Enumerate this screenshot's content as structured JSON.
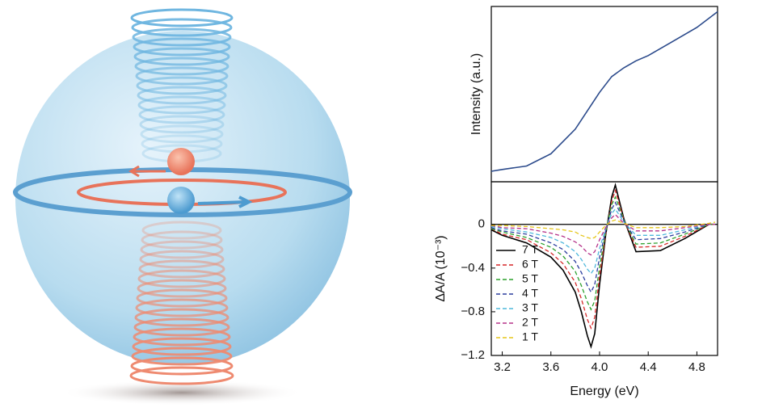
{
  "chart_data": [
    {
      "type": "line",
      "ylabel": "Intensity (a.u.)",
      "color": "#2b4a8b",
      "x": [
        3.11,
        3.2,
        3.4,
        3.6,
        3.8,
        4.0,
        4.1,
        4.2,
        4.3,
        4.4,
        4.6,
        4.8,
        4.97
      ],
      "values": [
        0.06,
        0.07,
        0.09,
        0.16,
        0.3,
        0.51,
        0.6,
        0.65,
        0.69,
        0.72,
        0.8,
        0.88,
        0.97
      ],
      "xlim": [
        3.11,
        4.97
      ],
      "ylim": [
        0,
        1
      ]
    },
    {
      "type": "line",
      "xlabel": "Energy (eV)",
      "ylabel": "ΔA/A (10⁻³)",
      "legend": "lower left",
      "x": [
        3.11,
        3.2,
        3.4,
        3.6,
        3.7,
        3.8,
        3.85,
        3.9,
        3.93,
        3.96,
        4.0,
        4.05,
        4.1,
        4.13,
        4.2,
        4.3,
        4.5,
        4.7,
        4.9,
        4.95
      ],
      "series": [
        {
          "name": "7 T",
          "color": "#000000",
          "dashed": false,
          "values": [
            -0.05,
            -0.1,
            -0.17,
            -0.3,
            -0.42,
            -0.62,
            -0.8,
            -1.02,
            -1.12,
            -1.0,
            -0.55,
            -0.1,
            0.25,
            0.36,
            0.05,
            -0.25,
            -0.24,
            -0.13,
            0.0,
            0.0
          ]
        },
        {
          "name": "6 T",
          "color": "#d62728",
          "dashed": true,
          "values": [
            -0.04,
            -0.09,
            -0.14,
            -0.26,
            -0.36,
            -0.53,
            -0.68,
            -0.87,
            -0.95,
            -0.85,
            -0.47,
            -0.09,
            0.21,
            0.31,
            0.04,
            -0.21,
            -0.2,
            -0.11,
            0.0,
            0.0
          ]
        },
        {
          "name": "5 T",
          "color": "#2ca02c",
          "dashed": true,
          "values": [
            -0.04,
            -0.07,
            -0.12,
            -0.21,
            -0.29,
            -0.43,
            -0.56,
            -0.71,
            -0.78,
            -0.7,
            -0.39,
            -0.07,
            0.18,
            0.25,
            0.04,
            -0.18,
            -0.17,
            -0.09,
            0.0,
            0.0
          ]
        },
        {
          "name": "4 T",
          "color": "#2c3e9e",
          "dashed": true,
          "values": [
            -0.03,
            -0.06,
            -0.09,
            -0.17,
            -0.23,
            -0.34,
            -0.44,
            -0.56,
            -0.62,
            -0.55,
            -0.3,
            -0.06,
            0.14,
            0.2,
            0.03,
            -0.14,
            -0.13,
            -0.07,
            0.0,
            0.0
          ]
        },
        {
          "name": "3 T",
          "color": "#4fb8dc",
          "dashed": true,
          "values": [
            -0.02,
            -0.04,
            -0.07,
            -0.12,
            -0.17,
            -0.25,
            -0.32,
            -0.41,
            -0.45,
            -0.4,
            -0.22,
            -0.04,
            0.1,
            0.14,
            0.02,
            -0.1,
            -0.1,
            -0.05,
            0.0,
            0.0
          ]
        },
        {
          "name": "2 T",
          "color": "#b5338a",
          "dashed": true,
          "values": [
            -0.01,
            -0.03,
            -0.04,
            -0.08,
            -0.11,
            -0.16,
            -0.2,
            -0.26,
            -0.28,
            -0.25,
            -0.14,
            -0.03,
            0.06,
            0.09,
            0.01,
            -0.06,
            -0.06,
            -0.03,
            0.0,
            0.0
          ]
        },
        {
          "name": "1 T",
          "color": "#e6c619",
          "dashed": true,
          "values": [
            -0.01,
            -0.01,
            -0.02,
            -0.04,
            -0.05,
            -0.07,
            -0.1,
            -0.12,
            -0.13,
            -0.12,
            -0.07,
            -0.01,
            0.03,
            0.04,
            0.01,
            -0.03,
            -0.03,
            -0.02,
            0.01,
            0.02
          ]
        }
      ],
      "xlim": [
        3.11,
        4.97
      ],
      "ylim": [
        -1.2,
        0.39
      ],
      "xticks": [
        3.2,
        3.6,
        {
          "value": 4,
          "label": "4.0"
        },
        4.4,
        4.8
      ],
      "yticks": [
        {
          "value": -1.2,
          "label": "−1.2"
        },
        {
          "value": -0.8,
          "label": "−0.8"
        },
        {
          "value": -0.4,
          "label": "−0.4"
        },
        0
      ]
    }
  ]
}
